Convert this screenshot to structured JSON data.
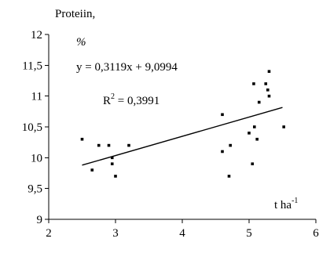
{
  "chart_data": {
    "type": "scatter",
    "title": "",
    "ylabel": "Proteiin,",
    "ylabel_unit": "%",
    "xlabel": "t ha",
    "xlabel_superscript": "-1",
    "xlim": [
      2,
      6
    ],
    "ylim": [
      9,
      12
    ],
    "xticks": [
      2,
      3,
      4,
      5,
      6
    ],
    "ytick_labels": [
      "9",
      "9,5",
      "10",
      "10,5",
      "11",
      "11,5",
      "12"
    ],
    "yticks": [
      9,
      9.5,
      10,
      10.5,
      11,
      11.5,
      12
    ],
    "grid": false,
    "legend": "none",
    "series": [
      {
        "color": "#000000",
        "points": [
          {
            "x": 2.5,
            "y": 10.3
          },
          {
            "x": 2.65,
            "y": 9.8
          },
          {
            "x": 2.75,
            "y": 10.2
          },
          {
            "x": 2.9,
            "y": 10.2
          },
          {
            "x": 2.95,
            "y": 9.9
          },
          {
            "x": 2.95,
            "y": 10.0
          },
          {
            "x": 3.0,
            "y": 9.7
          },
          {
            "x": 3.2,
            "y": 10.2
          },
          {
            "x": 4.6,
            "y": 10.7
          },
          {
            "x": 4.6,
            "y": 10.1
          },
          {
            "x": 4.7,
            "y": 9.7
          },
          {
            "x": 4.72,
            "y": 10.2
          },
          {
            "x": 5.0,
            "y": 10.4
          },
          {
            "x": 5.05,
            "y": 9.9
          },
          {
            "x": 5.07,
            "y": 11.2
          },
          {
            "x": 5.08,
            "y": 10.5
          },
          {
            "x": 5.12,
            "y": 10.3
          },
          {
            "x": 5.15,
            "y": 10.9
          },
          {
            "x": 5.25,
            "y": 11.2
          },
          {
            "x": 5.28,
            "y": 11.1
          },
          {
            "x": 5.3,
            "y": 11.0
          },
          {
            "x": 5.3,
            "y": 11.4
          },
          {
            "x": 5.52,
            "y": 10.5
          }
        ]
      }
    ],
    "trendline": {
      "slope": 0.3119,
      "intercept": 9.0994,
      "x_range": [
        2.5,
        5.5
      ],
      "equation_label": "y = 0,3119x + 9,0994",
      "r2_label": "R",
      "r2_superscript": "2",
      "r2_value": " = 0,3991"
    }
  }
}
